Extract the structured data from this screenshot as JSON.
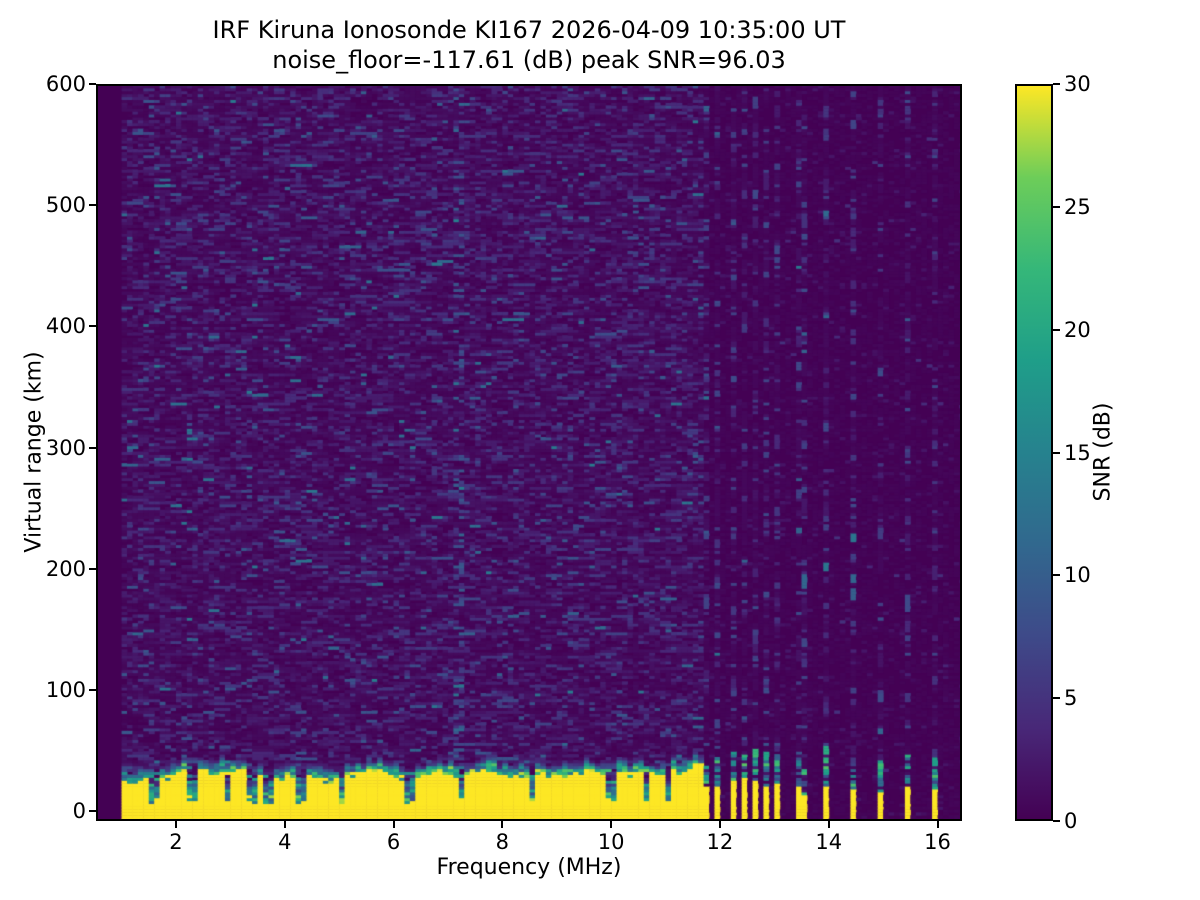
{
  "figure": {
    "title_line1": "IRF Kiruna Ionosonde KI167 2026-04-09 10:35:00  UT",
    "title_line2": "noise_floor=-117.61 (dB) peak SNR=96.03",
    "background_color": "#ffffff",
    "frame_color": "#000000"
  },
  "axes": {
    "xlabel": "Frequency (MHz)",
    "ylabel": "Virtual range (km)",
    "xticks": [
      2,
      4,
      6,
      8,
      10,
      12,
      14,
      16
    ],
    "yticks": [
      0,
      100,
      200,
      300,
      400,
      500,
      600
    ],
    "xlim": [
      0.53,
      16.45
    ],
    "ylim": [
      -8,
      600
    ]
  },
  "colorbar": {
    "label": "SNR (dB)",
    "ticks": [
      0,
      5,
      10,
      15,
      20,
      25,
      30
    ],
    "min": 0,
    "max": 30,
    "colormap": "viridis",
    "min_color": "#440154",
    "max_color": "#fde725"
  },
  "chart_data": {
    "type": "heatmap",
    "title": "IRF Kiruna Ionosonde KI167 2026-04-09 10:35:00  UT",
    "subtitle": "noise_floor=-117.61 (dB) peak SNR=96.03",
    "xlabel": "Frequency (MHz)",
    "ylabel": "Virtual range (km)",
    "value_label": "SNR (dB)",
    "noise_floor_db": -117.61,
    "peak_snr_db": 96.03,
    "x_range_mhz": [
      0.53,
      16.45
    ],
    "y_range_km": [
      -8,
      600
    ],
    "value_range_db": [
      0,
      30
    ],
    "grid": false,
    "legend_position": "right-colorbar",
    "features": {
      "no_data_below_mhz": 1.0,
      "sweep_start_mhz": 1.0,
      "continuous_echo_band": {
        "freq_range_mhz": [
          1.0,
          11.65
        ],
        "solid_top_km_range": [
          22,
          38
        ],
        "ragged_top_extra_km": [
          8,
          18
        ],
        "value_db": 30
      },
      "band_notch_freqs_mhz": [
        1.6,
        2.3,
        2.95,
        3.4,
        3.7,
        4.3,
        5.05,
        6.3,
        7.25,
        8.55,
        10.0,
        10.65,
        11.05
      ],
      "stripe_freqs_mhz": [
        11.77,
        11.99,
        12.21,
        12.42,
        12.64,
        12.85,
        13.07,
        13.5,
        13.97,
        14.44,
        14.92,
        15.44,
        15.95
      ],
      "enhanced_noise_column_mhz": 7.2,
      "background_noise_db_typical": [
        0,
        6
      ],
      "background_noise_db_peak": 14
    },
    "render": {
      "seed": 20260409,
      "freq_bin_mhz": 0.1,
      "range_gate_km": 2.4
    }
  }
}
